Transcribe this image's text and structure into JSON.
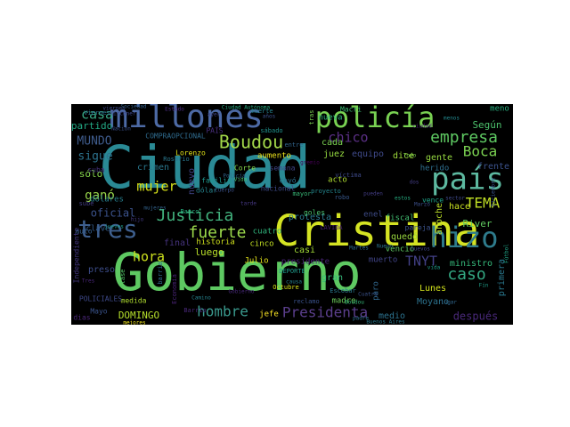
{
  "words": [
    {
      "text": "Ciudad",
      "color": "#2a8a95"
    },
    {
      "text": "Gobierno",
      "color": "#5ec962"
    },
    {
      "text": "Cristina",
      "color": "#d4e323"
    },
    {
      "text": "millones",
      "color": "#4d6aa5"
    },
    {
      "text": "policía",
      "color": "#79d152"
    },
    {
      "text": "país",
      "color": "#5db9a0"
    },
    {
      "text": "hizo",
      "color": "#2e7b8c"
    },
    {
      "text": "tres",
      "color": "#3e5f8e"
    },
    {
      "text": "Boudou",
      "color": "#a3d94a"
    },
    {
      "text": "Justicia",
      "color": "#42b37e"
    },
    {
      "text": "Presidenta",
      "color": "#5b3f8d"
    },
    {
      "text": "hombre",
      "color": "#3a9a8e"
    },
    {
      "text": "fuerte",
      "color": "#9bd94b"
    },
    {
      "text": "empresa",
      "color": "#5ec962"
    },
    {
      "text": "casa",
      "color": "#38a883"
    },
    {
      "text": "mujer",
      "color": "#d8e219"
    },
    {
      "text": "hora",
      "color": "#cde11d"
    },
    {
      "text": "caso",
      "color": "#33a882"
    },
    {
      "text": "Boca",
      "color": "#7ad151"
    },
    {
      "text": "TEMA",
      "color": "#c0df25"
    },
    {
      "text": "MUNDO",
      "color": "#3f5c8d"
    },
    {
      "text": "chico",
      "color": "#5b2f86"
    },
    {
      "text": "TNYT",
      "color": "#424086"
    },
    {
      "text": "ganó",
      "color": "#9bd94b"
    },
    {
      "text": "sigue",
      "color": "#2c728e"
    },
    {
      "text": "oficial",
      "color": "#3b528b"
    },
    {
      "text": "luego",
      "color": "#b8de29"
    },
    {
      "text": "después",
      "color": "#482878"
    },
    {
      "text": "nuevo",
      "color": "#414487"
    },
    {
      "text": "crimen",
      "color": "#2a788e"
    },
    {
      "text": "Según",
      "color": "#4cc26c"
    },
    {
      "text": "cada",
      "color": "#7ad151"
    },
    {
      "text": "juez",
      "color": "#95d840"
    },
    {
      "text": "equipo",
      "color": "#3f4a8a"
    },
    {
      "text": "River",
      "color": "#60ca60"
    },
    {
      "text": "primera",
      "color": "#2a788e"
    },
    {
      "text": "DOMINGO",
      "color": "#b5de2b"
    },
    {
      "text": "sólo",
      "color": "#84d44b"
    },
    {
      "text": "dice",
      "color": "#9fda3a"
    },
    {
      "text": "gente",
      "color": "#95d840"
    },
    {
      "text": "frente",
      "color": "#3b528b"
    },
    {
      "text": "nueva",
      "color": "#2db27d"
    },
    {
      "text": "Macri",
      "color": "#3dbc74"
    },
    {
      "text": "casi",
      "color": "#a2da37"
    },
    {
      "text": "anoche",
      "color": "#bade28"
    },
    {
      "text": "hace",
      "color": "#c8e020"
    },
    {
      "text": "Lunes",
      "color": "#d2e21b"
    },
    {
      "text": "medio",
      "color": "#2c728e"
    },
    {
      "text": "presidente",
      "color": "#482475"
    },
    {
      "text": "Moyano",
      "color": "#2c728e"
    },
    {
      "text": "ministro",
      "color": "#35b779"
    },
    {
      "text": "quedó",
      "color": "#98d83e"
    },
    {
      "text": "meno",
      "color": "#29af7f"
    },
    {
      "text": "partido",
      "color": "#22a884"
    },
    {
      "text": "protesta",
      "color": "#2a788e"
    },
    {
      "text": "final",
      "color": "#46337e"
    },
    {
      "text": "historia",
      "color": "#d0e11c"
    },
    {
      "text": "preso",
      "color": "#3d4d8a"
    },
    {
      "text": "jefe",
      "color": "#fde725"
    },
    {
      "text": "madre",
      "color": "#6ccd5a"
    },
    {
      "text": "Julio",
      "color": "#e5e419"
    },
    {
      "text": "cuatro",
      "color": "#2fb47c"
    },
    {
      "text": "cinco",
      "color": "#c2df23"
    },
    {
      "text": "fiscal",
      "color": "#42be71"
    },
    {
      "text": "herido",
      "color": "#2e6f8e"
    },
    {
      "text": "gran",
      "color": "#35b779"
    },
    {
      "text": "muerto",
      "color": "#414487"
    },
    {
      "text": "acto",
      "color": "#addc30"
    },
    {
      "text": "paro",
      "color": "#31688e"
    },
    {
      "text": "DEPORTE",
      "color": "#1f9a8a"
    },
    {
      "text": "Corte",
      "color": "#84d44b"
    },
    {
      "text": "Mayo",
      "color": "#3a538b"
    },
    {
      "text": "medida",
      "color": "#b0dd2f"
    },
    {
      "text": "dólares",
      "color": "#277f8e"
    },
    {
      "text": "Independiente",
      "color": "#453882"
    },
    {
      "text": "suba",
      "color": "#46327e"
    },
    {
      "text": "aumento",
      "color": "#efe51c"
    },
    {
      "text": "goles",
      "color": "#4ac16d"
    },
    {
      "text": "COMPRAOPCIONAL",
      "color": "#2f6b8e"
    },
    {
      "text": "POLICIALES",
      "color": "#3e4989"
    },
    {
      "text": "clave",
      "color": "#365c8d"
    },
    {
      "text": "Lorenzo",
      "color": "#e2e418"
    },
    {
      "text": "dólar",
      "color": "#25848e"
    },
    {
      "text": "familia",
      "color": "#1f958b"
    },
    {
      "text": "enel",
      "color": "#3e4c8a"
    },
    {
      "text": "dias",
      "color": "#482576"
    },
    {
      "text": "auto",
      "color": "#355f8d"
    },
    {
      "text": "PAÍS",
      "color": "#472d7b"
    },
    {
      "text": "nacional",
      "color": "#3e4a89"
    },
    {
      "text": "cayó",
      "color": "#2d708e"
    },
    {
      "text": "vence",
      "color": "#1fa188"
    },
    {
      "text": "semana",
      "color": "#404688"
    },
    {
      "text": "muerte",
      "color": "#26828e"
    },
    {
      "text": "Ciudad Autónoma",
      "color": "#27ad81"
    },
    {
      "text": "proyecto",
      "color": "#24868e"
    },
    {
      "text": "venció",
      "color": "#5ec962"
    },
    {
      "text": "Viernes",
      "color": "#2c728e"
    },
    {
      "text": "pareja",
      "color": "#3b528b"
    },
    {
      "text": "víctima",
      "color": "#3e4a89"
    },
    {
      "text": "LAVIDA",
      "color": "#481f70"
    },
    {
      "text": "sube",
      "color": "#433e85"
    },
    {
      "text": "Banco",
      "color": "#29af7f"
    },
    {
      "text": "Rosario",
      "color": "#2a788e"
    },
    {
      "text": "Octubre",
      "color": "#d8e219"
    },
    {
      "text": "tras",
      "color": "#7ad151"
    },
    {
      "text": "robo",
      "color": "#38598c"
    },
    {
      "text": "mayor",
      "color": "#38b977"
    },
    {
      "text": "Kirchner",
      "color": "#3f4889"
    },
    {
      "text": "clase",
      "color": "#52c569"
    },
    {
      "text": "Escobar",
      "color": "#2a788e"
    },
    {
      "text": "entre",
      "color": "#31668e"
    },
    {
      "text": "reclamo",
      "color": "#3b528b"
    },
    {
      "text": "hijo",
      "color": "#443a83"
    },
    {
      "text": "Barrio",
      "color": "#482878"
    },
    {
      "text": "sábado",
      "color": "#20928c"
    },
    {
      "text": "gremio",
      "color": "#440154"
    },
    {
      "text": "Nación",
      "color": "#3b518b"
    },
    {
      "text": "jueves",
      "color": "#1e9c89"
    },
    {
      "text": "Estado",
      "color": "#4e2d85"
    },
    {
      "text": "barrio",
      "color": "#31688e"
    },
    {
      "text": "mejores",
      "color": "#f0e51e"
    },
    {
      "text": "Cuerpo",
      "color": "#3b528b"
    },
    {
      "text": "padre",
      "color": "#2e6e8e"
    },
    {
      "text": "dos",
      "color": "#433d84"
    },
    {
      "text": "Vida",
      "color": "#4bc06c"
    },
    {
      "text": "viernes",
      "color": "#3e4a89"
    },
    {
      "text": "menos",
      "color": "#23888e"
    },
    {
      "text": "Economía",
      "color": "#482374"
    },
    {
      "text": "ayer",
      "color": "#3f4788"
    },
    {
      "text": "pueden",
      "color": "#433d84"
    },
    {
      "text": "mujeres",
      "color": "#33638d"
    },
    {
      "text": "Martes",
      "color": "#2e6d8e"
    },
    {
      "text": "tarde",
      "color": "#453781"
    },
    {
      "text": "vida",
      "color": "#1e9b8a"
    },
    {
      "text": "Sociedad",
      "color": "#34618d"
    },
    {
      "text": "ciudad",
      "color": "#482173"
    },
    {
      "text": "años",
      "color": "#3b528b"
    },
    {
      "text": "estos",
      "color": "#26ad81"
    },
    {
      "text": "Buenos Aires",
      "color": "#2a788e"
    },
    {
      "text": "nuevos",
      "color": "#3f4788"
    },
    {
      "text": "lugar",
      "color": "#31678e"
    },
    {
      "text": "Diciembre",
      "color": "#3a548c"
    },
    {
      "text": "Boudou",
      "color": "#35b779"
    },
    {
      "text": "sector",
      "color": "#3e4989"
    },
    {
      "text": "Gobierno",
      "color": "#482979"
    },
    {
      "text": "Fútbol",
      "color": "#20a386"
    },
    {
      "text": "Nuevo",
      "color": "#2c738e"
    },
    {
      "text": "causa",
      "color": "#26828e"
    },
    {
      "text": "Cuatro",
      "color": "#3b528b"
    },
    {
      "text": "Tres",
      "color": "#482677"
    },
    {
      "text": "Camino",
      "color": "#25838e"
    },
    {
      "text": "Policía",
      "color": "#32658e"
    },
    {
      "text": "Fin",
      "color": "#1f9e89"
    },
    {
      "text": "Marzo",
      "color": "#3c4f8a"
    },
    {
      "text": "Todo",
      "color": "#7fd34e"
    }
  ]
}
